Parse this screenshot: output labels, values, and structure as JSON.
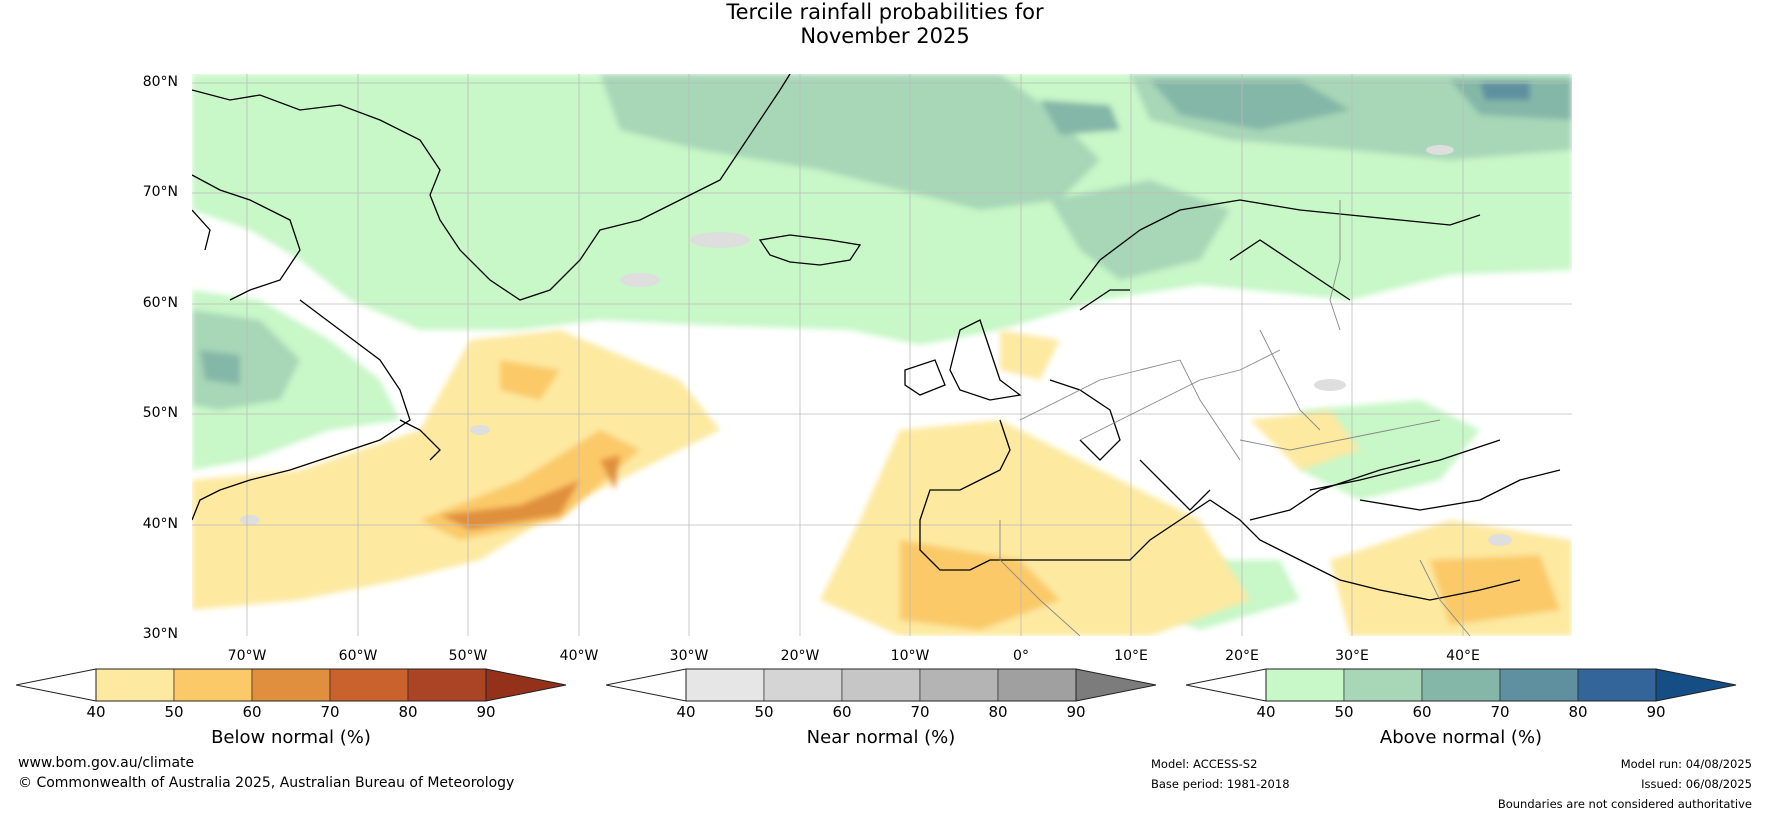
{
  "title_line1": "Tercile rainfall probabilities for",
  "title_line2": "November 2025",
  "lat_labels": [
    "80°N",
    "70°N",
    "60°N",
    "50°N",
    "40°N",
    "30°N"
  ],
  "lon_labels": [
    "70°W",
    "60°W",
    "50°W",
    "40°W",
    "30°W",
    "20°W",
    "10°W",
    "0°",
    "10°E",
    "20°E",
    "30°E",
    "40°E"
  ],
  "colorbars": [
    {
      "label": "Below normal (%)",
      "ticks": [
        "40",
        "50",
        "60",
        "70",
        "80",
        "90"
      ],
      "colors": [
        "#fde9a0",
        "#fbc968",
        "#e08f3e",
        "#c9622d",
        "#ab4424"
      ],
      "extend_high": "#94311a"
    },
    {
      "label": "Near normal (%)",
      "ticks": [
        "40",
        "50",
        "60",
        "70",
        "80",
        "90"
      ],
      "colors": [
        "#e6e6e6",
        "#d5d5d5",
        "#c6c6c6",
        "#b4b4b4",
        "#a0a0a0"
      ],
      "extend_high": "#7c7c7c"
    },
    {
      "label": "Above normal (%)",
      "ticks": [
        "40",
        "50",
        "60",
        "70",
        "80",
        "90"
      ],
      "colors": [
        "#c8f7c8",
        "#a7d7b7",
        "#85b7a8",
        "#5f90a0",
        "#33659a"
      ],
      "extend_high": "#154d85"
    }
  ],
  "colors": {
    "land_outline": "#000000",
    "borders": "#888888",
    "grid": "#bbbbbb"
  },
  "footer": {
    "url": "www.bom.gov.au/climate",
    "copyright": "© Commonwealth of Australia 2025, Australian Bureau of Meteorology",
    "model": "Model: ACCESS-S2",
    "base_period": "Base period: 1981-2018",
    "model_run": "Model run: 04/08/2025",
    "issued": "Issued: 06/08/2025",
    "disclaimer": "Boundaries are not considered authoritative"
  }
}
